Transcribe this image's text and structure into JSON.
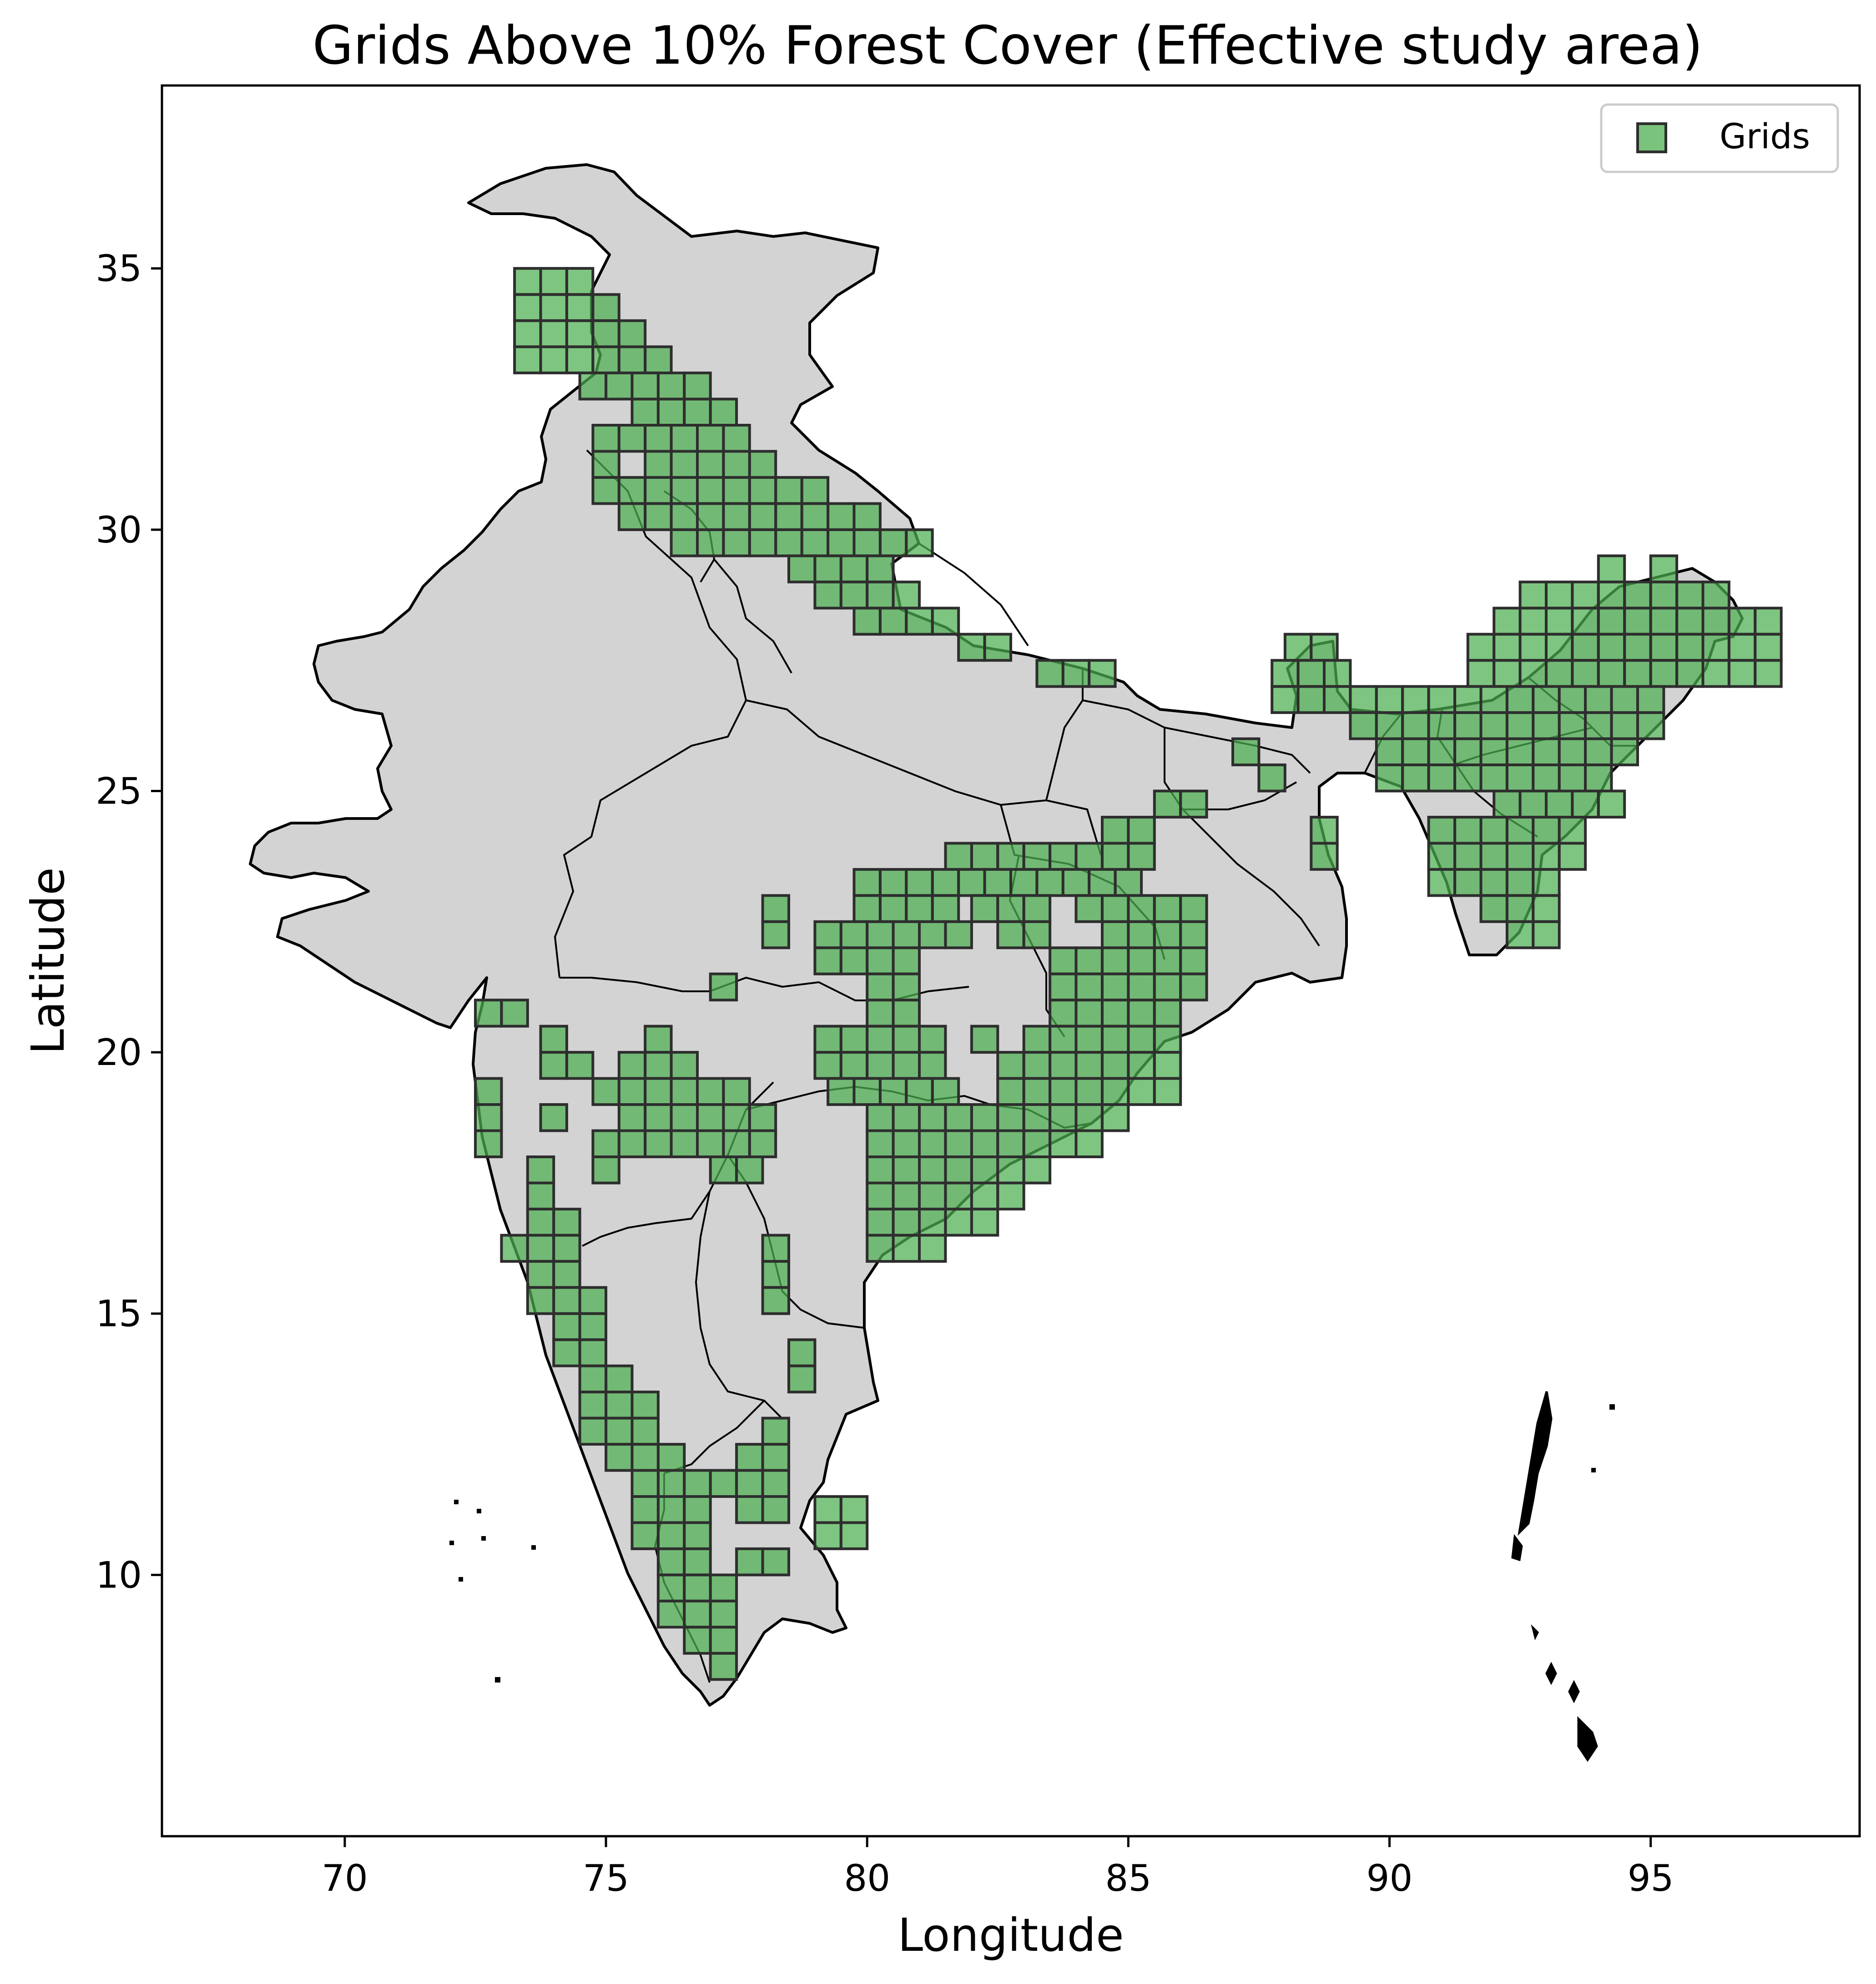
{
  "title": "Grids Above 10% Forest Cover (Effective study area)",
  "xlabel": "Longitude",
  "ylabel": "Latitude",
  "colors": {
    "land": "#d3d3d3",
    "border": "#000000",
    "grid_fill": "#4caf50",
    "grid_edge": "#2e2e2e",
    "background": "#ffffff"
  },
  "chart_data": {
    "type": "map",
    "title": "Grids Above 10% Forest Cover (Effective study area)",
    "xlabel": "Longitude",
    "ylabel": "Latitude",
    "xlim": [
      66.5,
      99.0
    ],
    "ylim": [
      5.0,
      38.5
    ],
    "xticks": [
      70,
      75,
      80,
      85,
      90,
      95
    ],
    "yticks": [
      10,
      15,
      20,
      25,
      30,
      35
    ],
    "grid_cell_size_deg": 0.5,
    "legend": {
      "position": "top-right",
      "entries": [
        "Grids"
      ]
    },
    "grid_rows": [
      {
        "lat": 34.75,
        "lons": [
          [
            73.5,
            74.75
          ]
        ]
      },
      {
        "lat": 34.25,
        "lons": [
          [
            73.5,
            75.25
          ]
        ]
      },
      {
        "lat": 33.75,
        "lons": [
          [
            73.5,
            75.75
          ]
        ]
      },
      {
        "lat": 33.25,
        "lons": [
          [
            73.5,
            76.25
          ]
        ]
      },
      {
        "lat": 32.75,
        "lons": [
          [
            74.75,
            76.75
          ]
        ]
      },
      {
        "lat": 32.25,
        "lons": [
          [
            75.75,
            77.25
          ]
        ]
      },
      {
        "lat": 31.75,
        "lons": [
          [
            75.0,
            77.75
          ]
        ]
      },
      {
        "lat": 31.25,
        "lons": [
          [
            75.0,
            75.25
          ],
          [
            76.0,
            78.25
          ]
        ]
      },
      {
        "lat": 30.75,
        "lons": [
          [
            75.0,
            79.25
          ]
        ]
      },
      {
        "lat": 30.25,
        "lons": [
          [
            75.5,
            80.25
          ]
        ]
      },
      {
        "lat": 29.75,
        "lons": [
          [
            76.5,
            81.0
          ]
        ]
      },
      {
        "lat": 29.25,
        "lons": [
          [
            78.75,
            80.25
          ]
        ]
      },
      {
        "lat": 28.75,
        "lons": [
          [
            79.25,
            81.0
          ]
        ]
      },
      {
        "lat": 28.25,
        "lons": [
          [
            80.0,
            81.5
          ]
        ]
      },
      {
        "lat": 27.75,
        "lons": [
          [
            82.0,
            82.75
          ]
        ]
      },
      {
        "lat": 27.25,
        "lons": [
          [
            83.5,
            84.75
          ]
        ]
      },
      {
        "lat": 29.25,
        "lons": [
          [
            94.25,
            94.25
          ],
          [
            95.25,
            95.25
          ]
        ]
      },
      {
        "lat": 28.75,
        "lons": [
          [
            92.75,
            96.25
          ]
        ]
      },
      {
        "lat": 28.25,
        "lons": [
          [
            92.25,
            97.25
          ]
        ]
      },
      {
        "lat": 27.75,
        "lons": [
          [
            88.25,
            88.75
          ],
          [
            91.75,
            97.25
          ]
        ]
      },
      {
        "lat": 27.25,
        "lons": [
          [
            88.0,
            89.0
          ],
          [
            91.75,
            97.25
          ]
        ]
      },
      {
        "lat": 26.75,
        "lons": [
          [
            88.0,
            95.25
          ]
        ]
      },
      {
        "lat": 26.25,
        "lons": [
          [
            89.5,
            95.25
          ]
        ]
      },
      {
        "lat": 25.75,
        "lons": [
          [
            87.25,
            87.25
          ],
          [
            90.0,
            94.75
          ]
        ]
      },
      {
        "lat": 25.25,
        "lons": [
          [
            87.75,
            87.75
          ],
          [
            90.0,
            94.25
          ]
        ]
      },
      {
        "lat": 24.75,
        "lons": [
          [
            85.75,
            86.25
          ],
          [
            92.25,
            94.25
          ]
        ]
      },
      {
        "lat": 24.25,
        "lons": [
          [
            84.75,
            85.5
          ],
          [
            88.75,
            88.75
          ],
          [
            91.0,
            93.75
          ]
        ]
      },
      {
        "lat": 23.75,
        "lons": [
          [
            81.75,
            85.5
          ],
          [
            88.75,
            88.75
          ],
          [
            91.0,
            93.75
          ]
        ]
      },
      {
        "lat": 23.25,
        "lons": [
          [
            80.0,
            85.0
          ],
          [
            91.0,
            93.25
          ]
        ]
      },
      {
        "lat": 22.75,
        "lons": [
          [
            78.25,
            78.25
          ],
          [
            80.0,
            81.5
          ],
          [
            82.25,
            83.25
          ],
          [
            84.25,
            84.75
          ],
          [
            85.25,
            86.25
          ],
          [
            92.0,
            93.25
          ]
        ]
      },
      {
        "lat": 22.25,
        "lons": [
          [
            78.25,
            78.25
          ],
          [
            79.25,
            81.75
          ],
          [
            82.75,
            83.25
          ],
          [
            84.75,
            86.25
          ],
          [
            92.5,
            93.25
          ]
        ]
      },
      {
        "lat": 21.75,
        "lons": [
          [
            79.25,
            80.75
          ],
          [
            83.75,
            86.25
          ]
        ]
      },
      {
        "lat": 21.25,
        "lons": [
          [
            77.25,
            77.25
          ],
          [
            80.25,
            80.75
          ],
          [
            83.75,
            86.25
          ]
        ]
      },
      {
        "lat": 20.75,
        "lons": [
          [
            72.75,
            73.25
          ],
          [
            80.25,
            80.75
          ],
          [
            83.75,
            85.75
          ]
        ]
      },
      {
        "lat": 20.25,
        "lons": [
          [
            74.0,
            74.25
          ],
          [
            76.0,
            76.25
          ],
          [
            79.25,
            81.25
          ],
          [
            82.25,
            82.25
          ],
          [
            83.25,
            85.75
          ]
        ]
      },
      {
        "lat": 19.75,
        "lons": [
          [
            74.0,
            74.75
          ],
          [
            75.5,
            76.75
          ],
          [
            79.25,
            81.25
          ],
          [
            82.75,
            85.75
          ]
        ]
      },
      {
        "lat": 19.25,
        "lons": [
          [
            72.75,
            72.75
          ],
          [
            75.0,
            77.75
          ],
          [
            79.5,
            81.5
          ],
          [
            82.75,
            85.75
          ]
        ]
      },
      {
        "lat": 18.75,
        "lons": [
          [
            72.75,
            72.75
          ],
          [
            74.0,
            74.0
          ],
          [
            75.5,
            78.0
          ],
          [
            80.25,
            85.0
          ]
        ]
      },
      {
        "lat": 18.25,
        "lons": [
          [
            72.75,
            72.75
          ],
          [
            75.0,
            78.0
          ],
          [
            80.25,
            84.5
          ]
        ]
      },
      {
        "lat": 17.75,
        "lons": [
          [
            73.75,
            73.75
          ],
          [
            75.0,
            75.25
          ],
          [
            77.25,
            77.75
          ],
          [
            80.25,
            83.5
          ]
        ]
      },
      {
        "lat": 17.25,
        "lons": [
          [
            73.75,
            73.75
          ],
          [
            80.25,
            83.0
          ]
        ]
      },
      {
        "lat": 16.75,
        "lons": [
          [
            73.75,
            74.5
          ],
          [
            80.25,
            82.5
          ]
        ]
      },
      {
        "lat": 16.25,
        "lons": [
          [
            73.25,
            74.25
          ],
          [
            78.25,
            78.25
          ],
          [
            80.25,
            81.25
          ]
        ]
      },
      {
        "lat": 15.75,
        "lons": [
          [
            73.75,
            74.25
          ],
          [
            78.25,
            78.25
          ]
        ]
      },
      {
        "lat": 15.25,
        "lons": [
          [
            73.75,
            74.75
          ],
          [
            78.25,
            78.25
          ]
        ]
      },
      {
        "lat": 14.75,
        "lons": [
          [
            74.25,
            74.75
          ]
        ]
      },
      {
        "lat": 14.25,
        "lons": [
          [
            74.25,
            74.75
          ],
          [
            78.75,
            78.75
          ]
        ]
      },
      {
        "lat": 13.75,
        "lons": [
          [
            74.75,
            75.25
          ],
          [
            78.75,
            78.75
          ]
        ]
      },
      {
        "lat": 13.25,
        "lons": [
          [
            74.75,
            75.75
          ]
        ]
      },
      {
        "lat": 12.75,
        "lons": [
          [
            74.75,
            75.75
          ],
          [
            78.25,
            78.25
          ]
        ]
      },
      {
        "lat": 12.25,
        "lons": [
          [
            75.25,
            76.25
          ],
          [
            77.75,
            78.25
          ]
        ]
      },
      {
        "lat": 11.75,
        "lons": [
          [
            75.75,
            78.25
          ]
        ]
      },
      {
        "lat": 11.25,
        "lons": [
          [
            75.75,
            76.75
          ],
          [
            77.75,
            78.25
          ],
          [
            79.25,
            79.75
          ]
        ]
      },
      {
        "lat": 10.75,
        "lons": [
          [
            75.75,
            76.75
          ],
          [
            79.25,
            79.75
          ]
        ]
      },
      {
        "lat": 10.25,
        "lons": [
          [
            76.25,
            76.75
          ],
          [
            77.75,
            78.25
          ]
        ]
      },
      {
        "lat": 9.75,
        "lons": [
          [
            76.25,
            77.25
          ]
        ]
      },
      {
        "lat": 9.25,
        "lons": [
          [
            76.25,
            77.25
          ]
        ]
      },
      {
        "lat": 8.75,
        "lons": [
          [
            76.75,
            77.25
          ]
        ]
      },
      {
        "lat": 8.25,
        "lons": [
          [
            77.25,
            77.25
          ]
        ]
      }
    ]
  }
}
